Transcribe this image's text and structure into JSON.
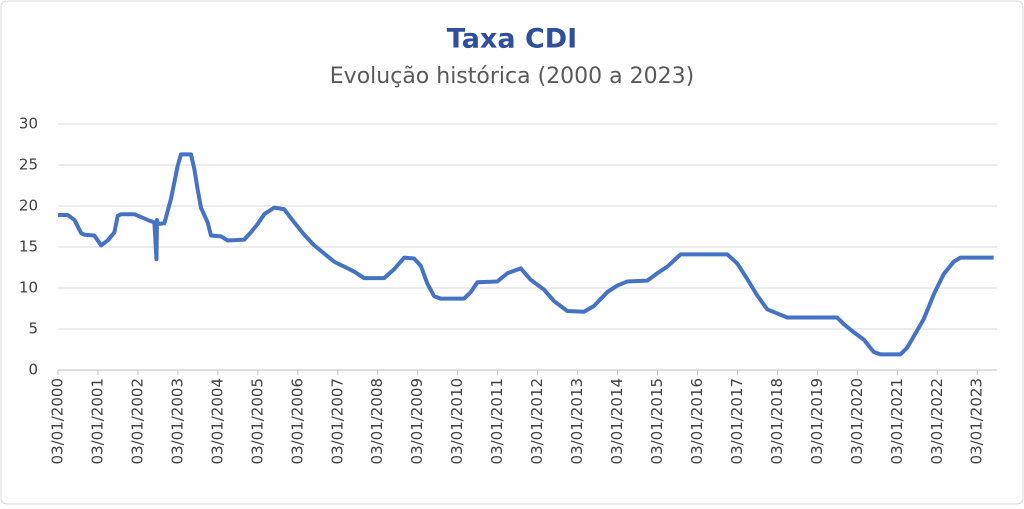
{
  "chart_data": {
    "type": "line",
    "title": "Taxa CDI",
    "subtitle": "Evolução histórica (2000 a 2023)",
    "ylim": [
      0,
      30
    ],
    "yticks": [
      0,
      5,
      10,
      15,
      20,
      25,
      30
    ],
    "grid": true,
    "xlim": [
      "03/01/2000",
      "01/07/2023"
    ],
    "xticks": [
      "03/01/2000",
      "03/01/2001",
      "03/01/2002",
      "03/01/2003",
      "03/01/2004",
      "03/01/2005",
      "03/01/2006",
      "03/01/2007",
      "03/01/2008",
      "03/01/2009",
      "03/01/2010",
      "03/01/2011",
      "03/01/2012",
      "03/01/2013",
      "03/01/2014",
      "03/01/2015",
      "03/01/2016",
      "03/01/2017",
      "03/01/2018",
      "03/01/2019",
      "03/01/2020",
      "03/01/2021",
      "03/01/2022",
      "03/01/2023"
    ],
    "series": [
      {
        "color": "#4472c4",
        "x": [
          "03/01/2000",
          "01/04/2000",
          "01/06/2000",
          "01/08/2000",
          "01/09/2000",
          "01/12/2000",
          "01/02/2001",
          "01/04/2001",
          "01/06/2001",
          "01/07/2001",
          "01/08/2001",
          "01/12/2001",
          "01/04/2002",
          "01/06/2002",
          "20/06/2002",
          "25/06/2002",
          "01/07/2002",
          "01/09/2002",
          "01/11/2002",
          "01/01/2003",
          "01/02/2003",
          "01/05/2003",
          "01/06/2003",
          "01/07/2003",
          "01/08/2003",
          "01/10/2003",
          "01/11/2003",
          "01/02/2004",
          "01/04/2004",
          "01/09/2004",
          "01/11/2004",
          "01/01/2005",
          "01/03/2005",
          "01/06/2005",
          "01/09/2005",
          "01/12/2005",
          "01/03/2006",
          "01/06/2006",
          "01/12/2006",
          "01/06/2007",
          "01/09/2007",
          "01/03/2008",
          "01/06/2008",
          "01/09/2008",
          "01/12/2008",
          "01/02/2009",
          "01/04/2009",
          "01/06/2009",
          "01/08/2009",
          "01/03/2010",
          "01/05/2010",
          "01/07/2010",
          "01/01/2011",
          "01/04/2011",
          "01/08/2011",
          "01/11/2011",
          "01/03/2012",
          "01/06/2012",
          "01/10/2012",
          "01/03/2013",
          "01/06/2013",
          "01/10/2013",
          "01/01/2014",
          "01/04/2014",
          "01/10/2014",
          "01/01/2015",
          "01/04/2015",
          "01/08/2015",
          "01/10/2016",
          "01/01/2017",
          "01/04/2017",
          "01/07/2017",
          "01/10/2017",
          "01/01/2018",
          "01/04/2018",
          "01/07/2019",
          "01/09/2019",
          "01/12/2019",
          "01/03/2020",
          "01/06/2020",
          "01/08/2020",
          "01/02/2021",
          "01/04/2021",
          "01/06/2021",
          "01/09/2021",
          "01/12/2021",
          "01/03/2022",
          "01/06/2022",
          "01/08/2022",
          "01/06/2023"
        ],
        "values": [
          18.9,
          18.9,
          18.3,
          16.7,
          16.5,
          16.4,
          15.2,
          15.8,
          16.8,
          18.8,
          19.0,
          19.0,
          18.3,
          18.0,
          13.5,
          18.3,
          17.8,
          17.9,
          20.9,
          24.9,
          26.3,
          26.3,
          24.5,
          22.0,
          19.8,
          18.0,
          16.4,
          16.3,
          15.8,
          15.9,
          16.8,
          17.8,
          19.0,
          19.8,
          19.6,
          18.0,
          16.5,
          15.2,
          13.2,
          12.0,
          11.2,
          11.2,
          12.3,
          13.7,
          13.6,
          12.7,
          10.5,
          9.0,
          8.7,
          8.7,
          9.5,
          10.7,
          10.8,
          11.8,
          12.4,
          11.0,
          9.8,
          8.4,
          7.2,
          7.1,
          7.8,
          9.5,
          10.3,
          10.8,
          10.9,
          11.8,
          12.6,
          14.1,
          14.1,
          13.0,
          11.1,
          9.1,
          7.4,
          6.9,
          6.4,
          6.4,
          5.6,
          4.6,
          3.7,
          2.2,
          1.9,
          1.9,
          2.7,
          4.1,
          6.2,
          9.2,
          11.7,
          13.2,
          13.7,
          13.7
        ]
      }
    ]
  }
}
